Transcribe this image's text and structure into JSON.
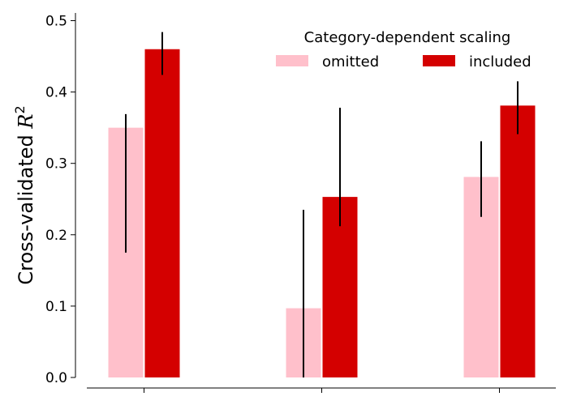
{
  "chart_data": {
    "type": "bar",
    "title": "",
    "xlabel": "",
    "ylabel": "Cross-validated R²",
    "ylabel_parts": {
      "prefix": "Cross-validated ",
      "symbol": "R",
      "superscript": "2"
    },
    "ylim": [
      0,
      0.5
    ],
    "yticks": [
      0.0,
      0.1,
      0.2,
      0.3,
      0.4,
      0.5
    ],
    "ytick_labels": [
      "0.0",
      "0.1",
      "0.2",
      "0.3",
      "0.4",
      "0.5"
    ],
    "categories": [
      "",
      "",
      ""
    ],
    "legend": {
      "title": "Category-dependent scaling",
      "placement": "top-right"
    },
    "series": [
      {
        "name": "omitted",
        "color": "#ffc0cb",
        "values": [
          0.35,
          0.097,
          0.281
        ],
        "err_low": [
          0.175,
          0.0,
          0.225
        ],
        "err_high": [
          0.369,
          0.235,
          0.331
        ]
      },
      {
        "name": "included",
        "color": "#d40000",
        "values": [
          0.46,
          0.253,
          0.381
        ],
        "err_low": [
          0.424,
          0.212,
          0.341
        ],
        "err_high": [
          0.484,
          0.378,
          0.415
        ]
      }
    ],
    "grid": false
  }
}
